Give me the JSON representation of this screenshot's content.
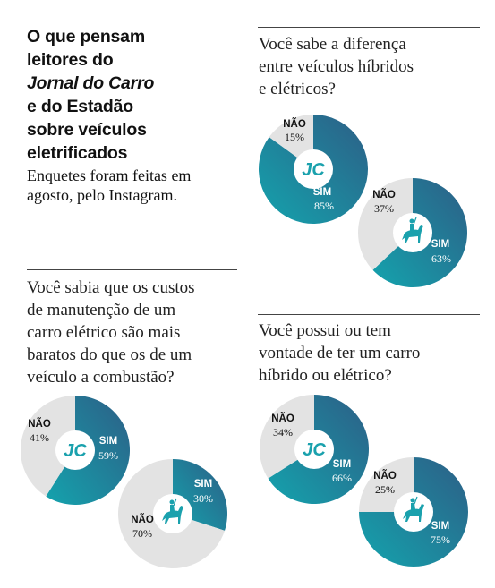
{
  "intro": {
    "title_lines": [
      "O que pensam",
      "leitores do",
      "Jornal do Carro",
      "e do Estadão",
      "sobre veículos",
      "eletrificados"
    ],
    "subtitle_lines": [
      "Enquetes foram feitas em",
      "agosto, pelo Instagram."
    ]
  },
  "colors": {
    "teal": "#1aa1ad",
    "navy": "#2a5f84",
    "gray": "#e3e3e3",
    "text": "#111111"
  },
  "labels": {
    "nao": "NÃO",
    "sim": "SIM"
  },
  "logos": {
    "jc": "JC",
    "estadao": "horse-rider-icon"
  },
  "chart_data": [
    {
      "type": "pie",
      "question_lines": [
        "Você sabe a diferença",
        "entre veículos híbridos",
        "e elétricos?"
      ],
      "polls": [
        {
          "source": "JC",
          "categories": [
            "SIM",
            "NÃO"
          ],
          "values": [
            85,
            15
          ],
          "value_labels": [
            "85%",
            "15%"
          ]
        },
        {
          "source": "Estadão",
          "categories": [
            "SIM",
            "NÃO"
          ],
          "values": [
            63,
            37
          ],
          "value_labels": [
            "63%",
            "37%"
          ]
        }
      ]
    },
    {
      "type": "pie",
      "question_lines": [
        "Você sabia que os custos",
        "de manutenção de um",
        "carro elétrico são mais",
        "baratos do que os de um",
        "veículo a combustão?"
      ],
      "polls": [
        {
          "source": "JC",
          "categories": [
            "SIM",
            "NÃO"
          ],
          "values": [
            59,
            41
          ],
          "value_labels": [
            "59%",
            "41%"
          ]
        },
        {
          "source": "Estadão",
          "categories": [
            "SIM",
            "NÃO"
          ],
          "values": [
            30,
            70
          ],
          "value_labels": [
            "30%",
            "70%"
          ]
        }
      ]
    },
    {
      "type": "pie",
      "question_lines": [
        "Você possui ou tem",
        "vontade de ter um carro",
        "híbrido ou elétrico?"
      ],
      "polls": [
        {
          "source": "JC",
          "categories": [
            "SIM",
            "NÃO"
          ],
          "values": [
            66,
            34
          ],
          "value_labels": [
            "66%",
            "34%"
          ]
        },
        {
          "source": "Estadão",
          "categories": [
            "SIM",
            "NÃO"
          ],
          "values": [
            75,
            25
          ],
          "value_labels": [
            "75%",
            "25%"
          ]
        }
      ]
    }
  ]
}
